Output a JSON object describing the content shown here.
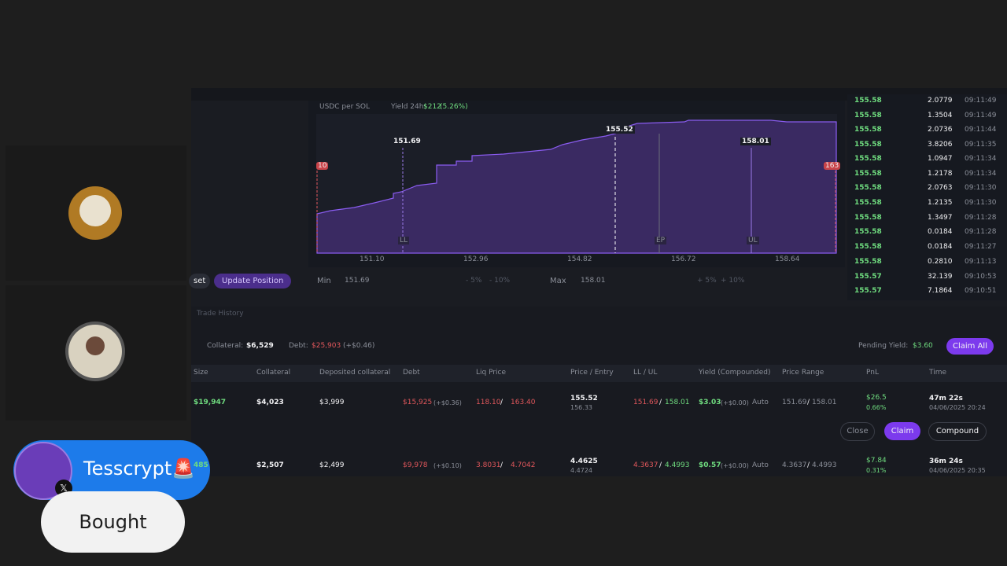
{
  "chart_panel": {
    "pair": "USDC per SOL",
    "yield_label": "Yield 24h:",
    "yield_value": "$212",
    "yield_pct": "(5.26%)",
    "markers": [
      "151.69",
      "155.52",
      "158.01"
    ],
    "range_edges": [
      "10",
      "163"
    ],
    "lines": [
      "LL",
      "EP",
      "UL"
    ],
    "x_labels": [
      "151.10",
      "152.96",
      "154.82",
      "156.72",
      "158.64"
    ]
  },
  "range_controls": {
    "reset": "set",
    "update": "Update Position",
    "min_label": "Min",
    "min_value": "151.69",
    "min_chips": [
      "- 5%",
      "- 10%"
    ],
    "max_label": "Max",
    "max_value": "158.01",
    "max_chips": [
      "+ 5%",
      "+ 10%"
    ]
  },
  "order_book": {
    "rows": [
      [
        "155.58",
        "2.0779",
        "09:11:49"
      ],
      [
        "155.58",
        "1.3504",
        "09:11:49"
      ],
      [
        "155.58",
        "2.0736",
        "09:11:44"
      ],
      [
        "155.58",
        "3.8206",
        "09:11:35"
      ],
      [
        "155.58",
        "1.0947",
        "09:11:34"
      ],
      [
        "155.58",
        "1.2178",
        "09:11:34"
      ],
      [
        "155.58",
        "2.0763",
        "09:11:30"
      ],
      [
        "155.58",
        "1.2135",
        "09:11:30"
      ],
      [
        "155.58",
        "1.3497",
        "09:11:28"
      ],
      [
        "155.58",
        "0.0184",
        "09:11:28"
      ],
      [
        "155.58",
        "0.0184",
        "09:11:27"
      ],
      [
        "155.58",
        "0.2810",
        "09:11:13"
      ],
      [
        "155.57",
        "32.139",
        "09:10:53"
      ],
      [
        "155.57",
        "7.1864",
        "09:10:51"
      ]
    ]
  },
  "positions": {
    "tab": "Trade History",
    "collateral_label": "Collateral:",
    "collateral": "$6,529",
    "debt_label": "Debt:",
    "debt": "$25,903",
    "debt_change": "(+$0.46)",
    "pending_label": "Pending Yield:",
    "pending": "$3.60",
    "claim_all": "Claim All",
    "separator": "/",
    "headers": [
      "Size",
      "Collateral",
      "Deposited collateral",
      "Debt",
      "Liq Price",
      "Price / Entry",
      "LL / UL",
      "Yield (Compounded)",
      "Price Range",
      "PnL",
      "Time"
    ],
    "rows": [
      {
        "size": "$19,947",
        "collateral": "$4,023",
        "deposited": "$3,999",
        "debt": "$15,925",
        "debt_change": "(+$0.36)",
        "liq_low": "118.10",
        "liq_high": "163.40",
        "price": "155.52",
        "entry": "156.33",
        "ll": "151.69",
        "ul": "158.01",
        "yield": "$3.03",
        "yield_change": "(+$0.00)",
        "mode": "Auto",
        "range_low": "151.69",
        "range_high": "158.01",
        "pnl": "$26.5",
        "pnl_pct": "0.66%",
        "time": "47m 22s",
        "date": "04/06/2025 20:24"
      },
      {
        "size": "485",
        "collateral": "$2,507",
        "deposited": "$2,499",
        "debt": "$9,978",
        "debt_change": "(+$0.10)",
        "liq_low": "3.8031",
        "liq_high": "4.7042",
        "price": "4.4625",
        "entry": "4.4724",
        "ll": "4.3637",
        "ul": "4.4993",
        "yield": "$0.57",
        "yield_change": "(+$0.00)",
        "mode": "Auto",
        "range_low": "4.3637",
        "range_high": "4.4993",
        "pnl": "$7.84",
        "pnl_pct": "0.31%",
        "time": "36m 24s",
        "date": "04/06/2025 20:35"
      }
    ],
    "actions": [
      "Close",
      "Claim",
      "Compound"
    ]
  },
  "overlay": {
    "user": "Tesscrypt🚨",
    "action": "Bought"
  }
}
